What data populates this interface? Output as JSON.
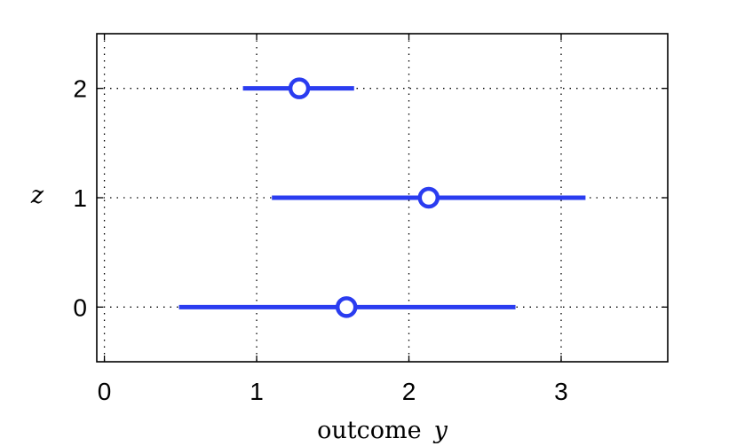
{
  "chart_data": {
    "type": "errorbar",
    "orientation": "horizontal",
    "xlabel": "outcome",
    "xlabel_var": "y",
    "ylabel": "z",
    "xlim": [
      -0.05,
      3.7
    ],
    "ylim": [
      -0.5,
      2.5
    ],
    "xticks": [
      "0",
      "1",
      "2",
      "3"
    ],
    "yticks": [
      "0",
      "1",
      "2"
    ],
    "grid": true,
    "color": "#2a3cf0",
    "points": [
      {
        "z": 0,
        "mean": 1.59,
        "low": 0.49,
        "high": 2.7
      },
      {
        "z": 1,
        "mean": 2.13,
        "low": 1.1,
        "high": 3.16
      },
      {
        "z": 2,
        "mean": 1.28,
        "low": 0.91,
        "high": 1.64
      }
    ]
  }
}
